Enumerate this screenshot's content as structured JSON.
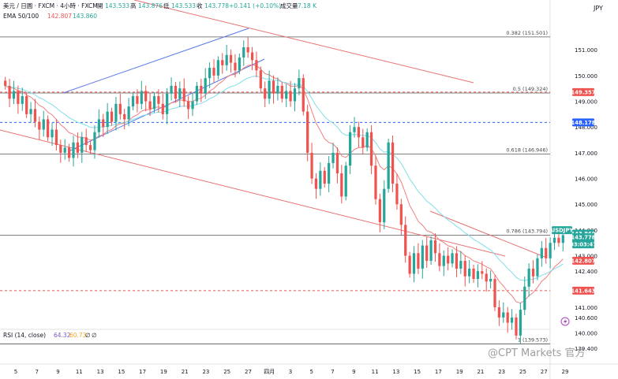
{
  "header": {
    "symbol_line": "美元 / 日圓 · FXCM · 4小時 · FXCM",
    "open_label": "開",
    "open_value": "143.533",
    "high_label": "高",
    "high_value": "143.876",
    "low_label": "低",
    "low_value": "143.533",
    "close_label": "收",
    "close_value": "143.778",
    "change": "+0.141 (+0.10%)",
    "volume_label": "成交量",
    "volume_value": "7.18 K",
    "ema_label": "EMA 50/100",
    "ema50_value": "142.807",
    "ema100_value": "143.860"
  },
  "currency": "JPY",
  "rsi": {
    "label": "RSI (14, close)",
    "value1": "64.32",
    "value2": "60.73",
    "value3": "∅",
    "value4": "∅"
  },
  "watermark": "@CPT Markets 官方",
  "colors": {
    "bull": "#26a69a",
    "bear": "#ef5350",
    "ema50": "#f08080",
    "ema100": "#80deea",
    "channel": "#5b7be8",
    "trend": "#e57373",
    "price_tag": "#2962ff"
  },
  "chart_data": {
    "type": "candlestick",
    "ylim": [
      139.1,
      152.2
    ],
    "y_ticks": [
      "151.000",
      "150.000",
      "149.000",
      "148.000",
      "147.000",
      "146.000",
      "145.000",
      "144.000",
      "143.000",
      "142.400",
      "141.000",
      "140.600",
      "140.000",
      "139.400"
    ],
    "x_ticks": [
      "5",
      "7",
      "9",
      "11",
      "13",
      "15",
      "17",
      "19",
      "21",
      "23",
      "25",
      "27",
      "四月",
      "3",
      "5",
      "7",
      "9",
      "11",
      "13",
      "15",
      "17",
      "19",
      "21",
      "23",
      "25",
      "27",
      "29"
    ],
    "fib_levels": [
      {
        "label": "0.382 (151.501)",
        "value": 151.501
      },
      {
        "label": "0.5 (149.324)",
        "value": 149.324
      },
      {
        "label": "0.618 (146.946)",
        "value": 146.946
      },
      {
        "label": "0.786 (143.794)",
        "value": 143.794
      },
      {
        "label": "1 (139.573)",
        "value": 139.573
      }
    ],
    "price_tags": [
      {
        "label": "149.357",
        "value": 149.357,
        "color": "#ef5350"
      },
      {
        "label": "148.178",
        "value": 148.178,
        "color": "#2962ff"
      },
      {
        "label": "143.860",
        "value": 143.86,
        "color": "#26a69a"
      },
      {
        "label": "USDJPY",
        "value": 143.778,
        "color": "#26a69a"
      },
      {
        "label": "143.778",
        "value": 143.778,
        "color": "#26a69a"
      },
      {
        "label": "03:03:47",
        "value": 143.778,
        "color": "#26a69a"
      },
      {
        "label": "142.807",
        "value": 142.807,
        "color": "#ef5350"
      },
      {
        "label": "141.643",
        "value": 141.643,
        "color": "#ef5350"
      }
    ],
    "dashed_levels": [
      {
        "value": 149.357,
        "color": "#ef5350"
      },
      {
        "value": 148.178,
        "color": "#2962ff"
      },
      {
        "value": 141.643,
        "color": "#ef5350"
      }
    ],
    "close_series": [
      149.6,
      149.1,
      149.4,
      148.9,
      149.2,
      148.5,
      148.7,
      148.2,
      147.9,
      148.3,
      147.6,
      147.9,
      147.3,
      147.0,
      147.2,
      146.8,
      147.4,
      147.0,
      147.6,
      147.3,
      147.1,
      147.8,
      148.3,
      148.0,
      148.6,
      148.2,
      148.9,
      148.5,
      148.3,
      148.8,
      149.2,
      148.9,
      149.4,
      149.0,
      148.7,
      149.2,
      148.9,
      148.5,
      149.3,
      149.6,
      149.1,
      149.5,
      149.0,
      148.7,
      149.0,
      149.6,
      149.3,
      149.9,
      150.3,
      150.0,
      150.6,
      150.4,
      150.8,
      150.5,
      150.2,
      150.7,
      151.1,
      150.9,
      150.6,
      150.2,
      149.5,
      149.1,
      149.8,
      149.3,
      149.6,
      149.1,
      149.4,
      149.0,
      149.5,
      149.9,
      148.6,
      147.0,
      146.0,
      145.6,
      146.3,
      145.8,
      146.6,
      147.0,
      146.2,
      145.3,
      146.5,
      147.8,
      148.0,
      147.6,
      147.2,
      147.8,
      146.5,
      145.2,
      144.3,
      145.6,
      147.4,
      145.8,
      145.0,
      144.2,
      143.0,
      142.3,
      143.1,
      142.5,
      143.4,
      142.8,
      143.6,
      143.1,
      142.6,
      143.0,
      142.7,
      143.1,
      142.5,
      142.8,
      142.2,
      142.5,
      142.1,
      142.4,
      142.3,
      142.0,
      142.1,
      141.0,
      140.6,
      140.8,
      140.4,
      140.6,
      139.9,
      140.9,
      141.8,
      142.5,
      142.2,
      142.9,
      143.3,
      142.9,
      143.5,
      143.7,
      143.5,
      143.8
    ]
  }
}
